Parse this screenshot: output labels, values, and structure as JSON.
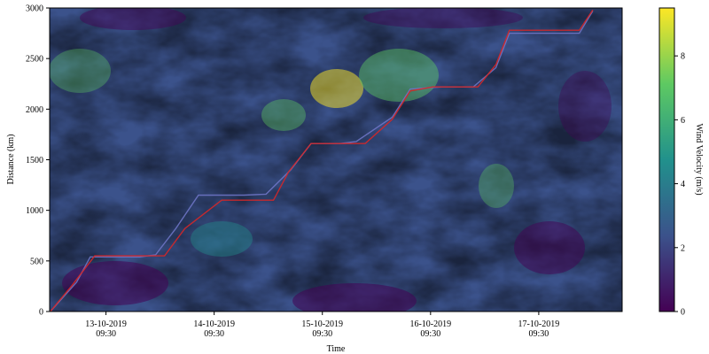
{
  "chart_data": {
    "type": "heatmap",
    "title": "",
    "xlabel": "Time",
    "ylabel": "Distance (km)",
    "colorbar_label": "Wind Velocity (m/s)",
    "colormap": "viridis",
    "colormap_stops": [
      "#440154",
      "#3b528b",
      "#21918c",
      "#5ec962",
      "#fde725"
    ],
    "route_color": "#d62728",
    "planned_route_color": "#6e74c4",
    "xlim": [
      "2019-10-12 21:00",
      "2019-10-18 04:00"
    ],
    "ylim": [
      0,
      3000
    ],
    "clim": [
      0,
      9.5
    ],
    "x_ticks": [
      {
        "value": "2019-10-13 09:30",
        "line1": "13-10-2019",
        "line2": "09:30"
      },
      {
        "value": "2019-10-14 09:30",
        "line1": "14-10-2019",
        "line2": "09:30"
      },
      {
        "value": "2019-10-15 09:30",
        "line1": "15-10-2019",
        "line2": "09:30"
      },
      {
        "value": "2019-10-16 09:30",
        "line1": "16-10-2019",
        "line2": "09:30"
      },
      {
        "value": "2019-10-17 09:30",
        "line1": "17-10-2019",
        "line2": "09:30"
      }
    ],
    "y_ticks": [
      0,
      500,
      1000,
      1500,
      2000,
      2500,
      3000
    ],
    "colorbar_ticks": [
      0,
      2,
      4,
      6,
      8
    ],
    "series": [
      {
        "style": "red",
        "x": [
          "2019-10-12 21:10",
          "2019-10-13 02:00",
          "2019-10-13 07:00",
          "2019-10-13 16:00",
          "2019-10-13 22:30",
          "2019-10-14 03:00",
          "2019-10-14 11:10",
          "2019-10-14 16:30",
          "2019-10-14 22:40",
          "2019-10-15 02:00",
          "2019-10-15 07:00",
          "2019-10-15 13:30",
          "2019-10-15 19:00",
          "2019-10-16 01:00",
          "2019-10-16 05:00",
          "2019-10-16 10:00",
          "2019-10-16 12:00",
          "2019-10-16 18:00",
          "2019-10-16 20:00",
          "2019-10-17 00:00",
          "2019-10-17 03:00",
          "2019-10-17 10:30",
          "2019-10-17 18:30",
          "2019-10-17 21:30"
        ],
        "y": [
          0,
          260,
          550,
          550,
          550,
          820,
          1100,
          1100,
          1100,
          1380,
          1660,
          1660,
          1660,
          1900,
          2180,
          2220,
          2220,
          2220,
          2220,
          2440,
          2780,
          2780,
          2780,
          2980
        ]
      },
      {
        "style": "blue",
        "x": [
          "2019-10-12 21:10",
          "2019-10-13 03:00",
          "2019-10-13 06:00",
          "2019-10-13 17:00",
          "2019-10-13 20:30",
          "2019-10-14 01:00",
          "2019-10-14 06:00",
          "2019-10-14 10:00",
          "2019-10-14 16:00",
          "2019-10-14 21:00",
          "2019-10-15 02:30",
          "2019-10-15 07:00",
          "2019-10-15 13:30",
          "2019-10-15 17:00",
          "2019-10-16 01:00",
          "2019-10-16 05:00",
          "2019-10-16 12:00",
          "2019-10-16 18:00",
          "2019-10-16 19:00",
          "2019-10-17 00:00",
          "2019-10-17 03:00",
          "2019-10-17 10:30",
          "2019-10-17 18:30",
          "2019-10-17 21:30"
        ],
        "y": [
          0,
          290,
          540,
          540,
          560,
          820,
          1150,
          1150,
          1150,
          1160,
          1400,
          1660,
          1660,
          1680,
          1920,
          2200,
          2220,
          2220,
          2220,
          2410,
          2750,
          2750,
          2750,
          2970
        ]
      }
    ]
  }
}
